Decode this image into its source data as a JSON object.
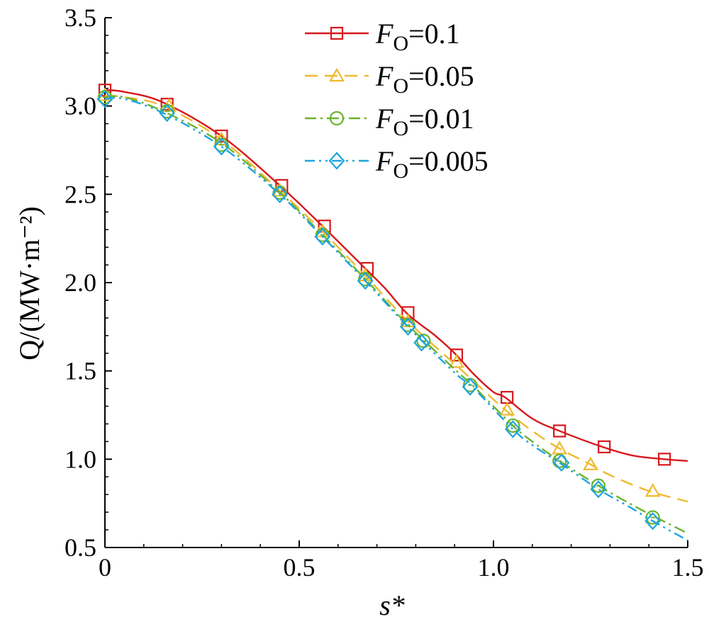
{
  "chart_data": {
    "type": "line",
    "title": "",
    "xlabel": "s*",
    "ylabel": "Q/(MW·m⁻²)",
    "xlim": [
      0,
      1.5
    ],
    "ylim": [
      0.5,
      3.5
    ],
    "xticks": [
      "0",
      "0.5",
      "1.0",
      "1.5"
    ],
    "yticks": [
      "0.5",
      "1.0",
      "1.5",
      "2.0",
      "2.5",
      "3.0",
      "3.5"
    ],
    "grid": false,
    "legend_position": "top-right",
    "series": [
      {
        "name": "F_O=0.1",
        "label_main": "F",
        "label_sub": "O",
        "label_value": "=0.1",
        "color": "#d7191c",
        "dash": "",
        "marker": "square",
        "curve": [
          [
            0,
            3.09
          ],
          [
            0.05,
            3.08
          ],
          [
            0.15,
            3.02
          ],
          [
            0.3,
            2.83
          ],
          [
            0.45,
            2.55
          ],
          [
            0.56,
            2.32
          ],
          [
            0.67,
            2.08
          ],
          [
            0.72,
            1.97
          ],
          [
            0.78,
            1.82
          ],
          [
            0.85,
            1.7
          ],
          [
            0.9,
            1.6
          ],
          [
            0.95,
            1.48
          ],
          [
            1.0,
            1.38
          ],
          [
            1.03,
            1.35
          ],
          [
            1.1,
            1.23
          ],
          [
            1.17,
            1.16
          ],
          [
            1.28,
            1.07
          ],
          [
            1.36,
            1.02
          ],
          [
            1.44,
            1.0
          ],
          [
            1.5,
            0.99
          ]
        ],
        "markers": [
          [
            0,
            3.09
          ],
          [
            0.16,
            3.01
          ],
          [
            0.3,
            2.83
          ],
          [
            0.455,
            2.55
          ],
          [
            0.565,
            2.32
          ],
          [
            0.675,
            2.08
          ],
          [
            0.78,
            1.83
          ],
          [
            0.905,
            1.59
          ],
          [
            1.035,
            1.35
          ],
          [
            1.17,
            1.16
          ],
          [
            1.285,
            1.07
          ],
          [
            1.44,
            1.0
          ]
        ]
      },
      {
        "name": "F_O=0.05",
        "label_main": "F",
        "label_sub": "O",
        "label_value": "=0.05",
        "color": "#f0b92f",
        "dash": "18,10",
        "marker": "triangle",
        "curve": [
          [
            0,
            3.06
          ],
          [
            0.05,
            3.05
          ],
          [
            0.15,
            3.0
          ],
          [
            0.3,
            2.81
          ],
          [
            0.45,
            2.52
          ],
          [
            0.56,
            2.29
          ],
          [
            0.67,
            2.04
          ],
          [
            0.78,
            1.78
          ],
          [
            0.9,
            1.54
          ],
          [
            0.95,
            1.44
          ],
          [
            1.03,
            1.28
          ],
          [
            1.1,
            1.16
          ],
          [
            1.17,
            1.06
          ],
          [
            1.25,
            0.97
          ],
          [
            1.3,
            0.91
          ],
          [
            1.4,
            0.82
          ],
          [
            1.5,
            0.76
          ]
        ],
        "markers": [
          [
            0,
            3.06
          ],
          [
            0.165,
            3.0
          ],
          [
            0.3,
            2.81
          ],
          [
            0.45,
            2.52
          ],
          [
            0.56,
            2.29
          ],
          [
            0.67,
            2.04
          ],
          [
            0.78,
            1.78
          ],
          [
            0.905,
            1.55
          ],
          [
            1.035,
            1.28
          ],
          [
            1.17,
            1.06
          ],
          [
            1.25,
            0.97
          ],
          [
            1.41,
            0.82
          ]
        ]
      },
      {
        "name": "F_O=0.01",
        "label_main": "F",
        "label_sub": "O",
        "label_value": "=0.01",
        "color": "#6ab42d",
        "dash": "16,6,3,6",
        "marker": "circle",
        "curve": [
          [
            0,
            3.05
          ],
          [
            0.05,
            3.05
          ],
          [
            0.15,
            2.97
          ],
          [
            0.3,
            2.79
          ],
          [
            0.45,
            2.51
          ],
          [
            0.56,
            2.27
          ],
          [
            0.67,
            2.02
          ],
          [
            0.78,
            1.76
          ],
          [
            0.9,
            1.51
          ],
          [
            0.95,
            1.41
          ],
          [
            1.05,
            1.19
          ],
          [
            1.1,
            1.1
          ],
          [
            1.17,
            0.99
          ],
          [
            1.27,
            0.85
          ],
          [
            1.35,
            0.75
          ],
          [
            1.41,
            0.68
          ],
          [
            1.5,
            0.58
          ]
        ],
        "markers": [
          [
            0,
            3.05
          ],
          [
            0.16,
            2.97
          ],
          [
            0.3,
            2.78
          ],
          [
            0.45,
            2.51
          ],
          [
            0.56,
            2.27
          ],
          [
            0.67,
            2.02
          ],
          [
            0.78,
            1.76
          ],
          [
            0.82,
            1.67
          ],
          [
            0.94,
            1.42
          ],
          [
            1.05,
            1.19
          ],
          [
            1.17,
            0.99
          ],
          [
            1.27,
            0.85
          ],
          [
            1.41,
            0.67
          ]
        ]
      },
      {
        "name": "F_O=0.005",
        "label_main": "F",
        "label_sub": "O",
        "label_value": "=0.005",
        "color": "#1ea5e0",
        "dash": "14,6,3,6,3,6",
        "marker": "diamond",
        "curve": [
          [
            0,
            3.04
          ],
          [
            0.05,
            3.04
          ],
          [
            0.15,
            2.96
          ],
          [
            0.3,
            2.77
          ],
          [
            0.45,
            2.5
          ],
          [
            0.56,
            2.26
          ],
          [
            0.67,
            2.01
          ],
          [
            0.78,
            1.75
          ],
          [
            0.9,
            1.49
          ],
          [
            0.95,
            1.4
          ],
          [
            1.05,
            1.17
          ],
          [
            1.1,
            1.08
          ],
          [
            1.17,
            0.98
          ],
          [
            1.27,
            0.83
          ],
          [
            1.35,
            0.73
          ],
          [
            1.41,
            0.65
          ],
          [
            1.5,
            0.54
          ]
        ],
        "markers": [
          [
            0,
            3.04
          ],
          [
            0.16,
            2.96
          ],
          [
            0.3,
            2.77
          ],
          [
            0.45,
            2.5
          ],
          [
            0.56,
            2.26
          ],
          [
            0.67,
            2.01
          ],
          [
            0.78,
            1.75
          ],
          [
            0.815,
            1.66
          ],
          [
            0.94,
            1.41
          ],
          [
            1.05,
            1.17
          ],
          [
            1.175,
            0.98
          ],
          [
            1.27,
            0.83
          ],
          [
            1.41,
            0.65
          ]
        ]
      }
    ]
  }
}
